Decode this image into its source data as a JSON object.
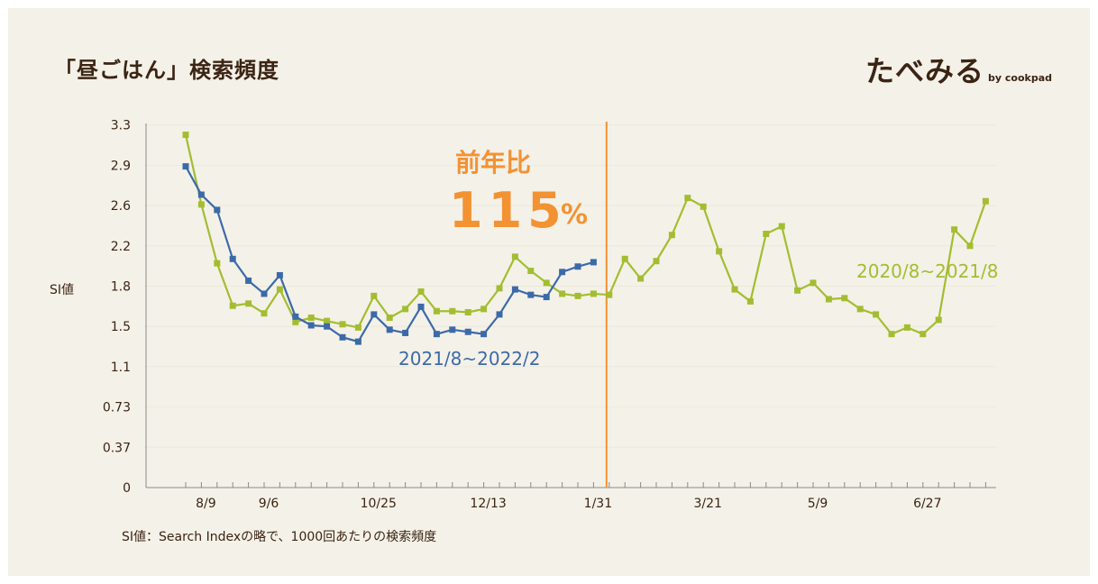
{
  "header": {
    "title": "「昼ごはん」検索頻度"
  },
  "brand": {
    "name": "たべみる",
    "by": "by cookpad"
  },
  "footnote": "SI値：Search Indexの略で、1000回あたりの検索頻度",
  "annotation": {
    "label": "前年比",
    "value": "115",
    "unit": "%"
  },
  "colors": {
    "current": "#3c6aa8",
    "previous": "#a3bd31",
    "marker_line": "#f39233",
    "text": "#3b2413"
  },
  "chart_data": {
    "type": "line",
    "ylabel": "SI値",
    "y_ticks": [
      "0",
      "0.37",
      "0.73",
      "1.1",
      "1.5",
      "1.8",
      "2.2",
      "2.6",
      "2.9",
      "3.3"
    ],
    "x_ticks": [
      {
        "index": 1,
        "label": "8/9"
      },
      {
        "index": 5,
        "label": "9/6"
      },
      {
        "index": 12,
        "label": "10/25"
      },
      {
        "index": 19,
        "label": "12/13"
      },
      {
        "index": 26,
        "label": "1/31"
      },
      {
        "index": 33,
        "label": "3/21"
      },
      {
        "index": 40,
        "label": "5/9"
      },
      {
        "index": 47,
        "label": "6/27"
      }
    ],
    "vertical_marker_index": 27,
    "series": [
      {
        "name": "2020/8~2021/8",
        "values": [
          3.24,
          2.6,
          2.06,
          1.67,
          1.69,
          1.6,
          1.82,
          1.52,
          1.56,
          1.53,
          1.5,
          1.47,
          1.76,
          1.56,
          1.64,
          1.8,
          1.62,
          1.62,
          1.61,
          1.64,
          1.83,
          2.12,
          1.99,
          1.88,
          1.78,
          1.76,
          1.78,
          1.77,
          2.1,
          1.92,
          2.08,
          2.32,
          2.66,
          2.58,
          2.17,
          1.82,
          1.71,
          2.33,
          2.4,
          1.81,
          1.88,
          1.73,
          1.74,
          1.64,
          1.59,
          1.41,
          1.47,
          1.41,
          1.54,
          2.37,
          2.22,
          2.63
        ]
      },
      {
        "name": "2021/8~2022/2",
        "values": [
          2.95,
          2.69,
          2.55,
          2.1,
          1.9,
          1.78,
          1.95,
          1.57,
          1.49,
          1.48,
          1.38,
          1.34,
          1.59,
          1.45,
          1.42,
          1.66,
          1.41,
          1.45,
          1.43,
          1.41,
          1.59,
          1.82,
          1.77,
          1.75,
          1.98,
          2.03,
          2.07
        ]
      }
    ]
  }
}
